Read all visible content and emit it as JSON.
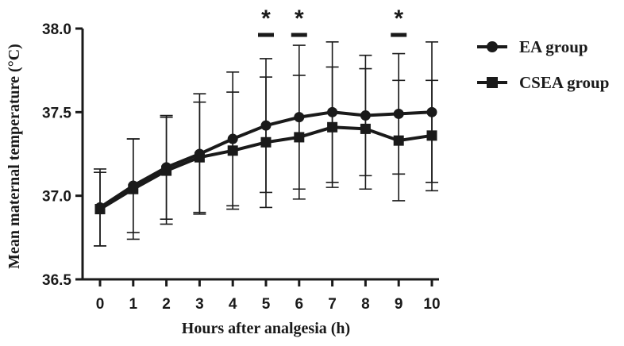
{
  "chart_data": {
    "type": "line",
    "xlabel": "Hours after analgesia (h)",
    "ylabel": "Mean maternal temperature (°C)",
    "x": [
      0,
      1,
      2,
      3,
      4,
      5,
      6,
      7,
      8,
      9,
      10
    ],
    "x_ticks": [
      "0",
      "1",
      "2",
      "3",
      "4",
      "5",
      "6",
      "7",
      "8",
      "9",
      "10"
    ],
    "ylim": [
      36.5,
      38.0
    ],
    "y_ticks": [
      "36.5",
      "37.0",
      "37.5",
      "38.0"
    ],
    "grid": false,
    "legend_position": "right",
    "series": [
      {
        "name": "EA group",
        "marker": "circle",
        "values": [
          36.93,
          37.06,
          37.17,
          37.25,
          37.34,
          37.42,
          37.47,
          37.5,
          37.48,
          37.49,
          37.5
        ],
        "error": [
          0.23,
          0.28,
          0.31,
          0.36,
          0.4,
          0.4,
          0.43,
          0.42,
          0.36,
          0.36,
          0.42
        ]
      },
      {
        "name": "CSEA group",
        "marker": "square",
        "values": [
          36.92,
          37.04,
          37.15,
          37.23,
          37.27,
          37.32,
          37.35,
          37.41,
          37.4,
          37.33,
          37.36
        ],
        "error": [
          0.22,
          0.3,
          0.32,
          0.33,
          0.35,
          0.39,
          0.37,
          0.36,
          0.36,
          0.36,
          0.33
        ]
      }
    ],
    "annotations": [
      {
        "x": 5,
        "text": "*"
      },
      {
        "x": 6,
        "text": "*"
      },
      {
        "x": 9,
        "text": "*"
      }
    ],
    "colors": {
      "line": "#1a1a1a",
      "background": "#ffffff"
    }
  }
}
